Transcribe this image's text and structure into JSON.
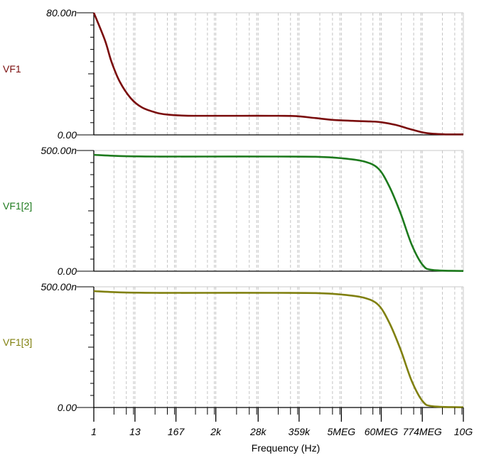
{
  "chart_data": {
    "type": "line",
    "xlabel": "Frequency (Hz)",
    "xscale": "log",
    "xlim": [
      1,
      10000000000
    ],
    "x_tick_values": [
      1,
      13,
      167,
      2000,
      28000,
      359000,
      5000000,
      60000000,
      774000000,
      10000000000
    ],
    "x_tick_labels": [
      "1",
      "13",
      "167",
      "2k",
      "28k",
      "359k",
      "5MEG",
      "60MEG",
      "774MEG",
      "10G"
    ],
    "grid": "vertical dashed",
    "panels": [
      {
        "name": "VF1",
        "color": "#7a0c0c",
        "ylim": [
          0,
          80
        ],
        "unit": "n",
        "y_tick_labels": [
          "80.00n",
          "0.00"
        ],
        "points": [
          [
            1,
            80
          ],
          [
            2,
            62
          ],
          [
            3,
            48
          ],
          [
            5,
            35
          ],
          [
            10,
            24
          ],
          [
            20,
            18
          ],
          [
            50,
            14.5
          ],
          [
            100,
            13.3
          ],
          [
            300,
            12.6
          ],
          [
            1000,
            12.5
          ],
          [
            10000,
            12.5
          ],
          [
            100000,
            12.5
          ],
          [
            300000,
            12.3
          ],
          [
            1000000,
            11
          ],
          [
            3000000,
            9.8
          ],
          [
            10000000,
            9.2
          ],
          [
            30000000,
            8.8
          ],
          [
            60000000,
            8.3
          ],
          [
            150000000,
            6.5
          ],
          [
            400000000,
            3.5
          ],
          [
            1000000000,
            1.2
          ],
          [
            3000000000,
            0.4
          ],
          [
            10000000000,
            0.3
          ]
        ]
      },
      {
        "name": "VF1[2]",
        "color": "#1d7a1d",
        "ylim": [
          0,
          500
        ],
        "unit": "n",
        "y_tick_labels": [
          "500.00n",
          "0.00"
        ],
        "points": [
          [
            1,
            482
          ],
          [
            5,
            477
          ],
          [
            50,
            475
          ],
          [
            1000,
            475
          ],
          [
            100000,
            475
          ],
          [
            1000000,
            474
          ],
          [
            5000000,
            468
          ],
          [
            20000000,
            455
          ],
          [
            50000000,
            425
          ],
          [
            100000000,
            350
          ],
          [
            200000000,
            240
          ],
          [
            400000000,
            110
          ],
          [
            800000000,
            25
          ],
          [
            1500000000,
            5
          ],
          [
            10000000000,
            1
          ]
        ]
      },
      {
        "name": "VF1[3]",
        "color": "#80800f",
        "ylim": [
          0,
          500
        ],
        "unit": "n",
        "y_tick_labels": [
          "500.00n",
          "0.00"
        ],
        "points": [
          [
            1,
            482
          ],
          [
            5,
            477
          ],
          [
            50,
            475
          ],
          [
            1000,
            475
          ],
          [
            100000,
            475
          ],
          [
            1000000,
            474
          ],
          [
            5000000,
            468
          ],
          [
            20000000,
            455
          ],
          [
            50000000,
            425
          ],
          [
            100000000,
            350
          ],
          [
            200000000,
            240
          ],
          [
            400000000,
            110
          ],
          [
            800000000,
            25
          ],
          [
            1500000000,
            5
          ],
          [
            10000000000,
            1
          ]
        ]
      }
    ]
  }
}
